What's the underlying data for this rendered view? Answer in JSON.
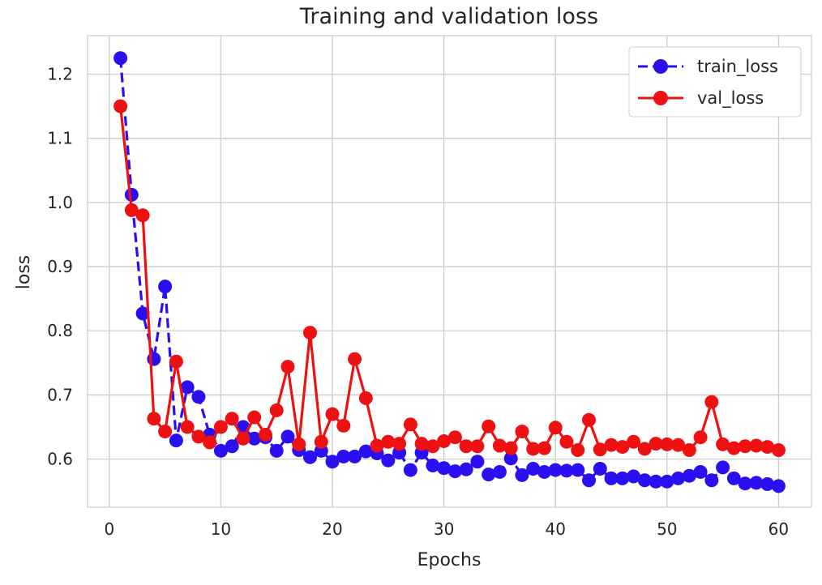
{
  "chart_data": {
    "type": "line",
    "title": "Training and validation loss",
    "xlabel": "Epochs",
    "ylabel": "loss",
    "xlim": [
      -1.95,
      62.95
    ],
    "ylim": [
      0.525,
      1.26
    ],
    "xticks": [
      0,
      10,
      20,
      30,
      40,
      50,
      60
    ],
    "yticks": [
      0.6,
      0.7,
      0.8,
      0.9,
      1.0,
      1.1,
      1.2
    ],
    "xtick_labels": [
      "0",
      "10",
      "20",
      "30",
      "40",
      "50",
      "60"
    ],
    "ytick_labels": [
      "0.6",
      "0.7",
      "0.8",
      "0.9",
      "1.0",
      "1.1",
      "1.2"
    ],
    "grid": true,
    "legend_position": "top-right",
    "x": [
      1,
      2,
      3,
      4,
      5,
      6,
      7,
      8,
      9,
      10,
      11,
      12,
      13,
      14,
      15,
      16,
      17,
      18,
      19,
      20,
      21,
      22,
      23,
      24,
      25,
      26,
      27,
      28,
      29,
      30,
      31,
      32,
      33,
      34,
      35,
      36,
      37,
      38,
      39,
      40,
      41,
      42,
      43,
      44,
      45,
      46,
      47,
      48,
      49,
      50,
      51,
      52,
      53,
      54,
      55,
      56,
      57,
      58,
      59,
      60
    ],
    "series": [
      {
        "name": "train_loss",
        "color": "#2a0ff0",
        "linestyle": "dashed",
        "values": [
          1.225,
          1.012,
          0.827,
          0.756,
          0.869,
          0.629,
          0.712,
          0.697,
          0.638,
          0.613,
          0.62,
          0.65,
          0.632,
          0.634,
          0.613,
          0.635,
          0.614,
          0.603,
          0.613,
          0.596,
          0.604,
          0.604,
          0.612,
          0.609,
          0.598,
          0.61,
          0.583,
          0.61,
          0.59,
          0.586,
          0.581,
          0.584,
          0.596,
          0.576,
          0.58,
          0.601,
          0.575,
          0.585,
          0.58,
          0.583,
          0.582,
          0.583,
          0.567,
          0.585,
          0.57,
          0.57,
          0.573,
          0.567,
          0.565,
          0.565,
          0.57,
          0.574,
          0.58,
          0.567,
          0.587,
          0.57,
          0.562,
          0.563,
          0.561,
          0.558
        ]
      },
      {
        "name": "val_loss",
        "color": "#ee1111",
        "linestyle": "solid",
        "values": [
          1.15,
          0.988,
          0.98,
          0.663,
          0.643,
          0.752,
          0.65,
          0.635,
          0.626,
          0.65,
          0.663,
          0.632,
          0.665,
          0.638,
          0.676,
          0.744,
          0.623,
          0.797,
          0.627,
          0.67,
          0.652,
          0.756,
          0.695,
          0.621,
          0.627,
          0.624,
          0.654,
          0.624,
          0.62,
          0.628,
          0.634,
          0.62,
          0.62,
          0.651,
          0.621,
          0.617,
          0.643,
          0.616,
          0.617,
          0.649,
          0.627,
          0.614,
          0.661,
          0.615,
          0.622,
          0.619,
          0.627,
          0.616,
          0.624,
          0.623,
          0.622,
          0.614,
          0.634,
          0.689,
          0.623,
          0.617,
          0.62,
          0.621,
          0.619,
          0.614
        ]
      }
    ]
  }
}
